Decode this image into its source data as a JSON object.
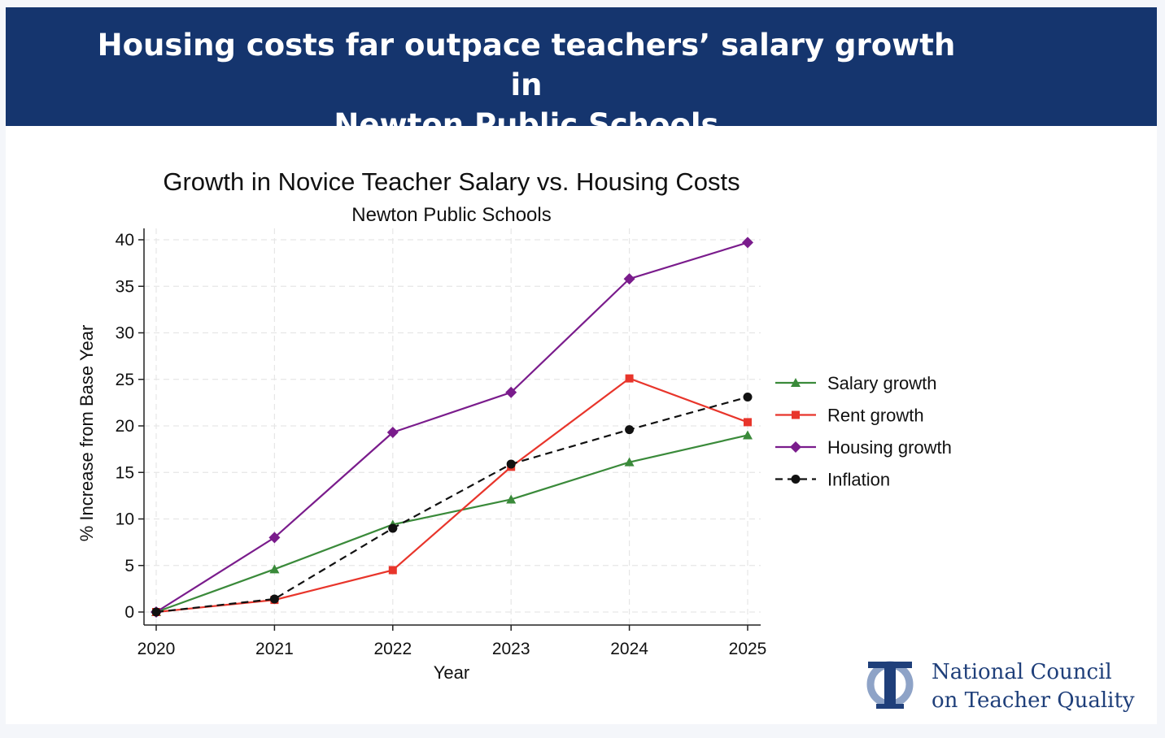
{
  "header": {
    "title_line1": "Housing costs far outpace teachers’ salary growth in",
    "title_line2": "Newton Public Schools"
  },
  "logo": {
    "icon": "ntcq-column-icon",
    "line1": "National Council",
    "line2": "on Teacher Quality",
    "color": "#1f3f7a"
  },
  "chart_data": {
    "type": "line",
    "title": "Growth in Novice Teacher Salary vs. Housing Costs",
    "subtitle": "Newton Public Schools",
    "xlabel": "Year",
    "ylabel": "% Increase from Base Year",
    "x": [
      2020,
      2021,
      2022,
      2023,
      2024,
      2025
    ],
    "xticks": [
      "2020",
      "2021",
      "2022",
      "2023",
      "2024",
      "2025"
    ],
    "yticks": [
      "0",
      "5",
      "10",
      "15",
      "20",
      "25",
      "30",
      "35",
      "40"
    ],
    "ylim": [
      0,
      40
    ],
    "grid": true,
    "legend_position": "right",
    "series": [
      {
        "name": "Salary growth",
        "color": "#3a8a3a",
        "marker": "triangle",
        "dashed": false,
        "values": [
          0,
          4.6,
          9.4,
          12.1,
          16.1,
          19.0
        ]
      },
      {
        "name": "Rent growth",
        "color": "#e8352b",
        "marker": "square",
        "dashed": false,
        "values": [
          0,
          1.3,
          4.5,
          15.6,
          25.1,
          20.4
        ]
      },
      {
        "name": "Housing growth",
        "color": "#7a1c8c",
        "marker": "diamond",
        "dashed": false,
        "values": [
          0,
          8.0,
          19.3,
          23.6,
          35.8,
          39.7
        ]
      },
      {
        "name": "Inflation",
        "color": "#111111",
        "marker": "circle",
        "dashed": true,
        "values": [
          0,
          1.4,
          9.0,
          15.9,
          19.6,
          23.1
        ]
      }
    ]
  }
}
